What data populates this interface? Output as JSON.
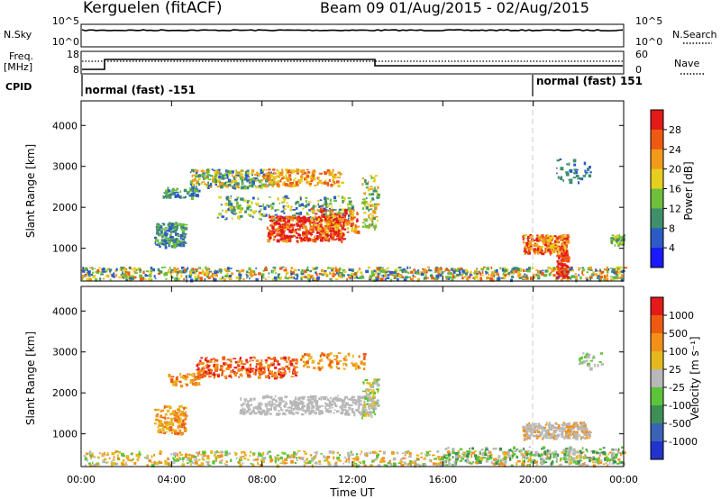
{
  "header": {
    "title": "Kerguelen (fitACF)",
    "beam_info": "Beam 09  01/Aug/2015 - 02/Aug/2015"
  },
  "top_panels": {
    "nsky_label": "N.Sky",
    "nsky_ticks": [
      "10^5",
      "10^0"
    ],
    "nsearch_label": "N.Search",
    "nsearch_ticks": [
      "10^5",
      "10^0"
    ],
    "freq_label_1": "Freq.",
    "freq_label_2": "[MHz]",
    "freq_ticks": [
      "18",
      "8"
    ],
    "nave_label": "Nave",
    "nave_ticks": [
      "60",
      "0"
    ],
    "cpid_label": "CPID",
    "cpid_segments": [
      {
        "label": "normal (fast) -151"
      },
      {
        "label": "normal (fast) 151"
      }
    ]
  },
  "chart_data": [
    {
      "type": "heatmap",
      "name_hint": "power",
      "ylabel": "Slant Range [km]",
      "xlabel": "",
      "y_ticks": [
        "1000",
        "2000",
        "3000",
        "4000"
      ],
      "ylim": [
        200,
        4600
      ],
      "x_ticks": [
        "00:00",
        "04:00",
        "08:00",
        "12:00",
        "16:00",
        "20:00",
        "00:00"
      ],
      "colorbar_label": "Power [dB]",
      "colorbar_ticks": [
        "4",
        "8",
        "12",
        "16",
        "20",
        "24",
        "28"
      ],
      "colorbar_colors": [
        "#1a1aff",
        "#2c5bc8",
        "#3f8f6d",
        "#6dbf3c",
        "#e6cf1e",
        "#f29a1a",
        "#ee5a12",
        "#e31a1a"
      ]
    },
    {
      "type": "heatmap",
      "name_hint": "velocity",
      "ylabel": "Slant Range [km]",
      "xlabel": "Time UT",
      "y_ticks": [
        "1000",
        "2000",
        "3000",
        "4000"
      ],
      "ylim": [
        200,
        4600
      ],
      "x_ticks": [
        "00:00",
        "04:00",
        "08:00",
        "12:00",
        "16:00",
        "20:00",
        "00:00"
      ],
      "colorbar_label": "Velocity [m s⁻¹]",
      "colorbar_ticks": [
        "1000",
        "500",
        "100",
        "25",
        "-25",
        "-100",
        "-500",
        "-1000"
      ],
      "colorbar_colors": [
        "#2233cc",
        "#3a63b8",
        "#3e8f56",
        "#5cc43a",
        "#b8b8b8",
        "#e6b81e",
        "#f2901a",
        "#ee5a12",
        "#e31a1a"
      ]
    }
  ]
}
